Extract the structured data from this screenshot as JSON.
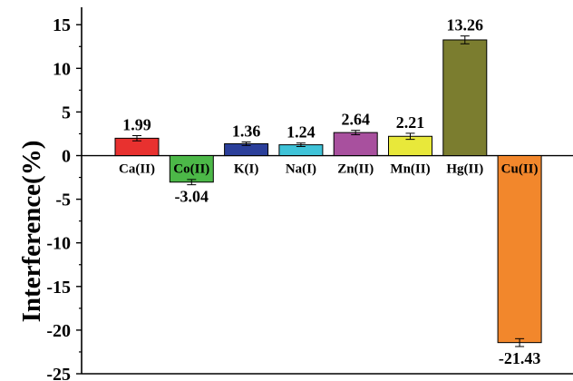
{
  "chart_data": {
    "type": "bar",
    "ylabel": "Interference(%)",
    "xlabel": "",
    "ylim": [
      -25,
      17
    ],
    "yticks": [
      15,
      10,
      5,
      0,
      -5,
      -10,
      -15,
      -20,
      -25
    ],
    "ytick_labels": [
      "15",
      "10",
      "5",
      "0",
      "-5",
      "-10",
      "-15",
      "-20",
      "-25"
    ],
    "grid": false,
    "categories": [
      "Ca(II)",
      "Co(II)",
      "K(I)",
      "Na(I)",
      "Zn(II)",
      "Mn(II)",
      "Hg(II)",
      "Cu(II)"
    ],
    "values": [
      1.99,
      -3.04,
      1.36,
      1.24,
      2.64,
      2.21,
      13.26,
      -21.43
    ],
    "value_labels": [
      "1.99",
      "-3.04",
      "1.36",
      "1.24",
      "2.64",
      "2.21",
      "13.26",
      "-21.43"
    ],
    "errors": [
      0.3,
      0.3,
      0.2,
      0.2,
      0.25,
      0.35,
      0.45,
      0.45
    ],
    "colors": [
      "#e8312f",
      "#4cb848",
      "#2b3f9a",
      "#3fc3d8",
      "#a8509e",
      "#e8e83a",
      "#7b7d2f",
      "#f2872c"
    ]
  }
}
